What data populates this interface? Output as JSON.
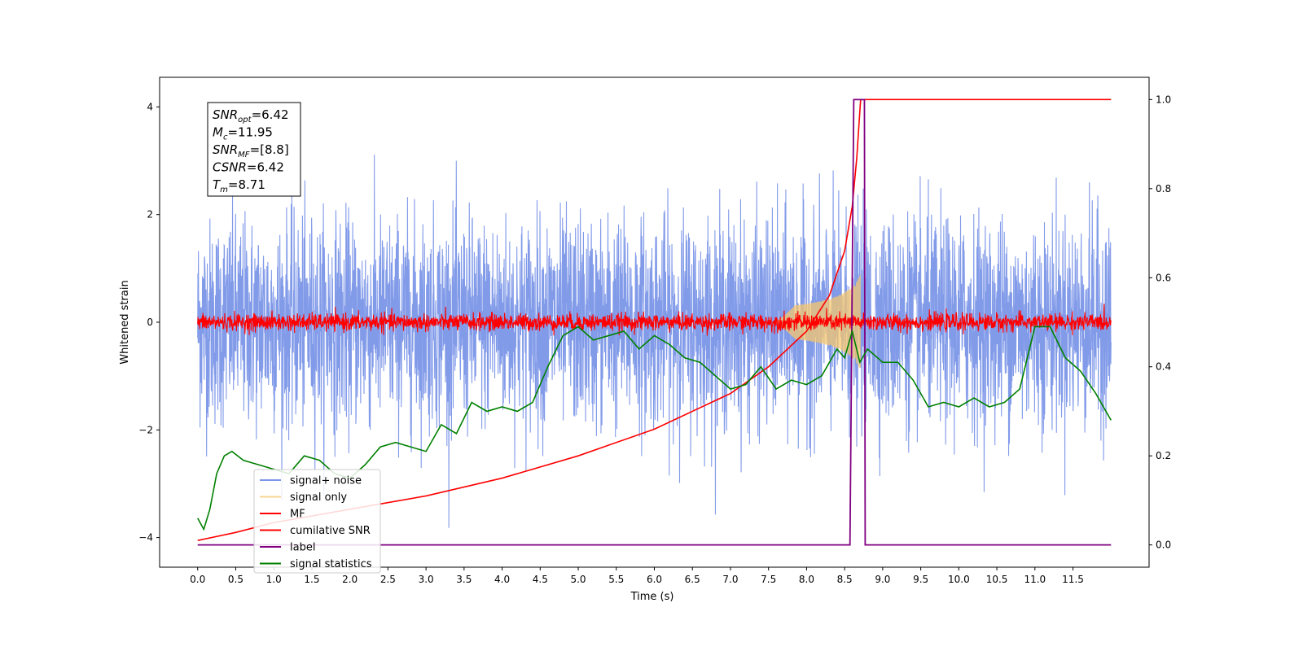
{
  "chart_data": {
    "type": "line",
    "title": "",
    "xlabel": "Time (s)",
    "ylabel": "Whitened strain",
    "xlim": [
      -0.5,
      12.5
    ],
    "ylim_left": [
      -4.55,
      4.55
    ],
    "ylim_right": [
      -0.05,
      1.05
    ],
    "x_ticks": [
      0.0,
      0.5,
      1.0,
      1.5,
      2.0,
      2.5,
      3.0,
      3.5,
      4.0,
      4.5,
      5.0,
      5.5,
      6.0,
      6.5,
      7.0,
      7.5,
      8.0,
      8.5,
      9.0,
      9.5,
      10.0,
      10.5,
      11.0,
      11.5
    ],
    "x_tick_labels": [
      "0.0",
      "0.5",
      "1.0",
      "1.5",
      "2.0",
      "2.5",
      "3.0",
      "3.5",
      "4.0",
      "4.5",
      "5.0",
      "5.5",
      "6.0",
      "6.5",
      "7.0",
      "7.5",
      "8.0",
      "8.5",
      "9.0",
      "9.5",
      "10.0",
      "10.5",
      "11.0",
      "11.5"
    ],
    "y_left_ticks": [
      4,
      2,
      0,
      -2,
      -4
    ],
    "y_left_tick_labels": [
      "4",
      "2",
      "0",
      "−2",
      "−4"
    ],
    "y_right_ticks": [
      1.0,
      0.8,
      0.6,
      0.4,
      0.2,
      0.0
    ],
    "y_right_tick_labels": [
      "1.0",
      "0.8",
      "0.6",
      "0.4",
      "0.2",
      "0.0"
    ],
    "grid": false,
    "legend_position": "lower-left",
    "annotation": [
      {
        "main": "SNR",
        "sub": "opt",
        "value": "=6.42"
      },
      {
        "main": "M",
        "sub": "c",
        "value": "=11.95"
      },
      {
        "main": "SNR",
        "sub": "MF",
        "value": "=[8.8]"
      },
      {
        "main": "CSNR",
        "sub": "",
        "value": "=6.42"
      },
      {
        "main": "T",
        "sub": "m",
        "value": "=8.71"
      }
    ],
    "series": [
      {
        "name": "signal+ noise",
        "axis": "left",
        "color": "#7b96e8",
        "style": "noise",
        "std": 0.95,
        "range": [
          0.0,
          12.0
        ]
      },
      {
        "name": "signal only",
        "axis": "left",
        "color": "#f5c76e",
        "style": "chirp",
        "range": [
          7.6,
          8.71
        ]
      },
      {
        "name": "MF",
        "axis": "left",
        "color": "#ff0000",
        "style": "noise",
        "std": 0.08,
        "range": [
          0.0,
          12.0
        ]
      },
      {
        "name": "cumilative SNR",
        "axis": "right",
        "color": "#ff0000",
        "x": [
          0.0,
          0.5,
          1.0,
          2.0,
          3.0,
          4.0,
          5.0,
          6.0,
          6.5,
          7.0,
          7.5,
          8.0,
          8.3,
          8.5,
          8.6,
          8.66,
          8.71,
          8.72,
          12.0
        ],
        "y": [
          0.01,
          0.028,
          0.05,
          0.08,
          0.11,
          0.15,
          0.2,
          0.26,
          0.3,
          0.34,
          0.4,
          0.48,
          0.56,
          0.66,
          0.76,
          0.87,
          1.0,
          1.0,
          1.0
        ]
      },
      {
        "name": "label",
        "axis": "right",
        "color": "#800080",
        "x": [
          0.0,
          8.57,
          8.62,
          8.76,
          8.77,
          12.0
        ],
        "y": [
          0.0,
          0.0,
          1.0,
          1.0,
          0.0,
          0.0
        ]
      },
      {
        "name": "signal statistics",
        "axis": "right",
        "color": "#008000",
        "x": [
          0.0,
          0.08,
          0.16,
          0.25,
          0.35,
          0.45,
          0.6,
          0.8,
          1.0,
          1.2,
          1.4,
          1.6,
          1.8,
          2.0,
          2.2,
          2.4,
          2.6,
          2.8,
          3.0,
          3.2,
          3.4,
          3.6,
          3.8,
          4.0,
          4.2,
          4.4,
          4.6,
          4.8,
          5.0,
          5.2,
          5.4,
          5.6,
          5.8,
          6.0,
          6.2,
          6.4,
          6.6,
          6.8,
          7.0,
          7.2,
          7.4,
          7.6,
          7.8,
          8.0,
          8.2,
          8.4,
          8.5,
          8.6,
          8.7,
          8.8,
          9.0,
          9.2,
          9.4,
          9.6,
          9.8,
          10.0,
          10.2,
          10.4,
          10.6,
          10.8,
          11.0,
          11.2,
          11.4,
          11.6,
          11.8,
          12.0
        ],
        "y": [
          0.06,
          0.035,
          0.08,
          0.16,
          0.2,
          0.21,
          0.19,
          0.18,
          0.17,
          0.16,
          0.2,
          0.19,
          0.16,
          0.15,
          0.18,
          0.22,
          0.23,
          0.22,
          0.21,
          0.27,
          0.25,
          0.32,
          0.3,
          0.31,
          0.3,
          0.32,
          0.4,
          0.47,
          0.49,
          0.46,
          0.47,
          0.48,
          0.44,
          0.47,
          0.45,
          0.42,
          0.41,
          0.38,
          0.35,
          0.36,
          0.4,
          0.35,
          0.37,
          0.36,
          0.38,
          0.44,
          0.42,
          0.48,
          0.41,
          0.44,
          0.41,
          0.41,
          0.37,
          0.31,
          0.32,
          0.31,
          0.33,
          0.31,
          0.32,
          0.35,
          0.49,
          0.49,
          0.42,
          0.39,
          0.34,
          0.28
        ]
      }
    ]
  }
}
